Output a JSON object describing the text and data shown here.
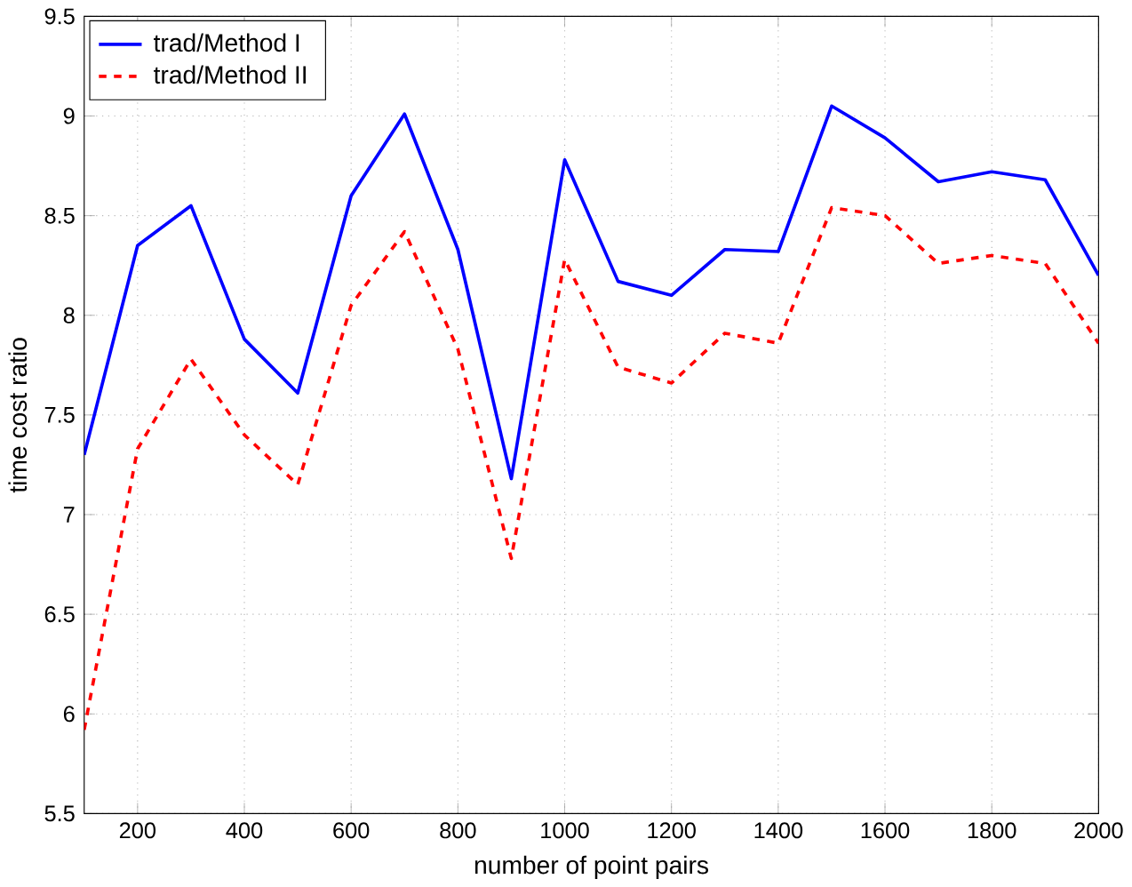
{
  "chart_data": {
    "type": "line",
    "xlabel": "number of point pairs",
    "ylabel": "time cost ratio",
    "x": [
      100,
      200,
      300,
      400,
      500,
      600,
      700,
      800,
      900,
      1000,
      1100,
      1200,
      1300,
      1400,
      1500,
      1600,
      1700,
      1800,
      1900,
      2000
    ],
    "series": [
      {
        "name": "trad/Method I",
        "color": "#0000ff",
        "line_style": "solid",
        "values": [
          7.3,
          8.35,
          8.55,
          7.88,
          7.61,
          8.6,
          9.01,
          8.33,
          7.18,
          8.78,
          8.17,
          8.1,
          8.33,
          8.32,
          9.05,
          8.89,
          8.67,
          8.72,
          8.68,
          8.2
        ]
      },
      {
        "name": "trad/Method II",
        "color": "#ff0000",
        "line_style": "dashed",
        "values": [
          5.92,
          7.33,
          7.78,
          7.4,
          7.15,
          8.05,
          8.42,
          7.83,
          6.78,
          8.28,
          7.74,
          7.66,
          7.91,
          7.86,
          8.54,
          8.5,
          8.26,
          8.3,
          8.26,
          7.86
        ]
      }
    ],
    "xlim": [
      100,
      2000
    ],
    "ylim": [
      5.5,
      9.5
    ],
    "xticks": [
      200,
      400,
      600,
      800,
      1000,
      1200,
      1400,
      1600,
      1800,
      2000
    ],
    "yticks": [
      5.5,
      6,
      6.5,
      7,
      7.5,
      8,
      8.5,
      9,
      9.5
    ],
    "grid": true,
    "legend": "top left",
    "marker": "none"
  }
}
